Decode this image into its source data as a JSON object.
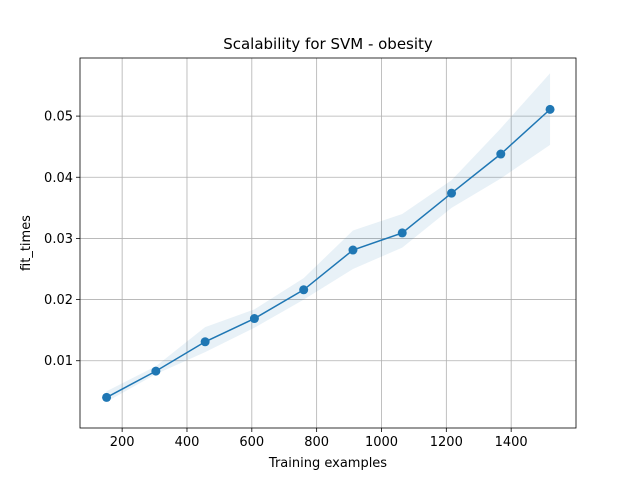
{
  "chart_data": {
    "type": "line",
    "title": "Scalability for SVM - obesity",
    "xlabel": "Training examples",
    "ylabel": "fit_times",
    "xlim": [
      70,
      1600
    ],
    "ylim": [
      -0.001,
      0.0595
    ],
    "grid": true,
    "xticks": [
      200,
      400,
      600,
      800,
      1000,
      1200,
      1400
    ],
    "yticks": [
      0.01,
      0.02,
      0.03,
      0.04,
      0.05
    ],
    "ytick_labels": [
      "0.01",
      "0.02",
      "0.03",
      "0.04",
      "0.05"
    ],
    "colors": {
      "line": "#1f77b4",
      "band": "#1f77b4",
      "grid": "#b0b0b0"
    },
    "series": [
      {
        "x": [
          152,
          304,
          456,
          608,
          760,
          912,
          1064,
          1216,
          1368,
          1520
        ],
        "values": [
          0.004,
          0.0083,
          0.0131,
          0.0169,
          0.0216,
          0.0281,
          0.0309,
          0.0374,
          0.0438,
          0.0511
        ],
        "lower": [
          0.0033,
          0.0078,
          0.0114,
          0.0154,
          0.02,
          0.025,
          0.0285,
          0.035,
          0.0398,
          0.0453
        ],
        "upper": [
          0.005,
          0.0091,
          0.0155,
          0.0184,
          0.0235,
          0.0313,
          0.034,
          0.0395,
          0.048,
          0.057
        ]
      }
    ]
  }
}
